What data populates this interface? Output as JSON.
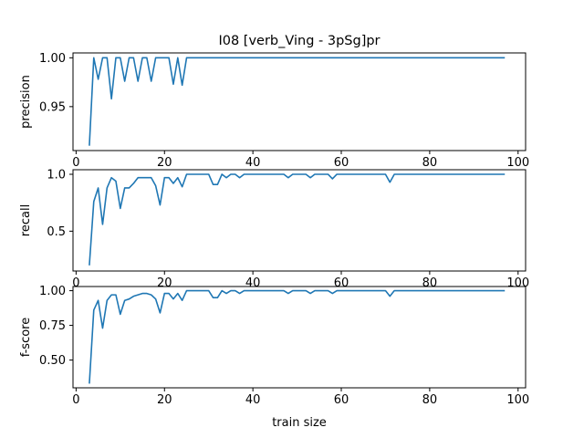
{
  "chart_data": [
    {
      "type": "line",
      "title": "I08 [verb_Ving - 3pSg]pr",
      "ylabel": "precision",
      "xlabel": "",
      "xlim": [
        -0.7,
        101.7
      ],
      "ylim": [
        0.905,
        1.005
      ],
      "xticks": [
        0,
        20,
        40,
        60,
        80,
        100
      ],
      "xtick_labels": [
        "0",
        "20",
        "40",
        "60",
        "80",
        "100"
      ],
      "yticks": [
        0.95,
        1.0
      ],
      "ytick_labels": [
        "0.95",
        "1.00"
      ],
      "grid": false,
      "series": [
        {
          "color": "#1f77b4",
          "x": [
            3,
            4,
            5,
            6,
            7,
            8,
            9,
            10,
            11,
            12,
            13,
            14,
            15,
            16,
            17,
            18,
            19,
            20,
            21,
            22,
            23,
            24,
            25,
            26,
            27,
            28,
            29,
            30,
            31,
            32,
            33,
            34,
            35,
            36,
            37,
            38,
            39,
            40,
            41,
            42,
            43,
            44,
            45,
            46,
            47,
            48,
            49,
            50,
            51,
            52,
            53,
            54,
            55,
            56,
            57,
            58,
            59,
            60,
            61,
            62,
            63,
            64,
            65,
            66,
            67,
            68,
            69,
            70,
            71,
            72,
            73,
            74,
            75,
            76,
            77,
            78,
            79,
            80,
            81,
            82,
            83,
            84,
            85,
            86,
            87,
            88,
            89,
            90,
            91,
            92,
            93,
            94,
            95,
            96,
            97
          ],
          "y": [
            0.91,
            1.0,
            0.978,
            1.0,
            1.0,
            0.958,
            1.0,
            1.0,
            0.976,
            1.0,
            1.0,
            0.976,
            1.0,
            1.0,
            0.976,
            1.0,
            1.0,
            1.0,
            1.0,
            0.973,
            1.0,
            0.972,
            1.0,
            1.0,
            1.0,
            1.0,
            1.0,
            1.0,
            1.0,
            1.0,
            1.0,
            1.0,
            1.0,
            1.0,
            1.0,
            1.0,
            1.0,
            1.0,
            1.0,
            1.0,
            1.0,
            1.0,
            1.0,
            1.0,
            1.0,
            1.0,
            1.0,
            1.0,
            1.0,
            1.0,
            1.0,
            1.0,
            1.0,
            1.0,
            1.0,
            1.0,
            1.0,
            1.0,
            1.0,
            1.0,
            1.0,
            1.0,
            1.0,
            1.0,
            1.0,
            1.0,
            1.0,
            1.0,
            1.0,
            1.0,
            1.0,
            1.0,
            1.0,
            1.0,
            1.0,
            1.0,
            1.0,
            1.0,
            1.0,
            1.0,
            1.0,
            1.0,
            1.0,
            1.0,
            1.0,
            1.0,
            1.0,
            1.0,
            1.0,
            1.0,
            1.0,
            1.0,
            1.0,
            1.0,
            1.0
          ]
        }
      ]
    },
    {
      "type": "line",
      "title": "",
      "ylabel": "recall",
      "xlabel": "",
      "xlim": [
        -0.7,
        101.7
      ],
      "ylim": [
        0.15,
        1.04
      ],
      "xticks": [
        0,
        20,
        40,
        60,
        80,
        100
      ],
      "xtick_labels": [
        "0",
        "20",
        "40",
        "60",
        "80",
        "100"
      ],
      "yticks": [
        0.5,
        1.0
      ],
      "ytick_labels": [
        "0.5",
        "1.0"
      ],
      "grid": false,
      "series": [
        {
          "color": "#1f77b4",
          "x": [
            3,
            4,
            5,
            6,
            7,
            8,
            9,
            10,
            11,
            12,
            13,
            14,
            15,
            16,
            17,
            18,
            19,
            20,
            21,
            22,
            23,
            24,
            25,
            26,
            27,
            28,
            29,
            30,
            31,
            32,
            33,
            34,
            35,
            36,
            37,
            38,
            39,
            40,
            41,
            42,
            43,
            44,
            45,
            46,
            47,
            48,
            49,
            50,
            51,
            52,
            53,
            54,
            55,
            56,
            57,
            58,
            59,
            60,
            61,
            62,
            63,
            64,
            65,
            66,
            67,
            68,
            69,
            70,
            71,
            72,
            73,
            74,
            75,
            76,
            77,
            78,
            79,
            80,
            81,
            82,
            83,
            84,
            85,
            86,
            87,
            88,
            89,
            90,
            91,
            92,
            93,
            94,
            95,
            96,
            97
          ],
          "y": [
            0.2,
            0.76,
            0.88,
            0.56,
            0.88,
            0.97,
            0.94,
            0.7,
            0.88,
            0.88,
            0.92,
            0.97,
            0.97,
            0.97,
            0.97,
            0.9,
            0.73,
            0.97,
            0.97,
            0.92,
            0.97,
            0.89,
            1.0,
            1.0,
            1.0,
            1.0,
            1.0,
            1.0,
            0.91,
            0.91,
            1.0,
            0.97,
            1.0,
            1.0,
            0.97,
            1.0,
            1.0,
            1.0,
            1.0,
            1.0,
            1.0,
            1.0,
            1.0,
            1.0,
            1.0,
            0.97,
            1.0,
            1.0,
            1.0,
            1.0,
            0.97,
            1.0,
            1.0,
            1.0,
            1.0,
            0.96,
            1.0,
            1.0,
            1.0,
            1.0,
            1.0,
            1.0,
            1.0,
            1.0,
            1.0,
            1.0,
            1.0,
            1.0,
            0.93,
            1.0,
            1.0,
            1.0,
            1.0,
            1.0,
            1.0,
            1.0,
            1.0,
            1.0,
            1.0,
            1.0,
            1.0,
            1.0,
            1.0,
            1.0,
            1.0,
            1.0,
            1.0,
            1.0,
            1.0,
            1.0,
            1.0,
            1.0,
            1.0,
            1.0,
            1.0
          ]
        }
      ]
    },
    {
      "type": "line",
      "title": "",
      "ylabel": "f-score",
      "xlabel": "train size",
      "xlim": [
        -0.7,
        101.7
      ],
      "ylim": [
        0.3,
        1.03
      ],
      "xticks": [
        0,
        20,
        40,
        60,
        80,
        100
      ],
      "xtick_labels": [
        "0",
        "20",
        "40",
        "60",
        "80",
        "100"
      ],
      "yticks": [
        0.5,
        0.75,
        1.0
      ],
      "ytick_labels": [
        "0.50",
        "0.75",
        "1.00"
      ],
      "grid": false,
      "series": [
        {
          "color": "#1f77b4",
          "x": [
            3,
            4,
            5,
            6,
            7,
            8,
            9,
            10,
            11,
            12,
            13,
            14,
            15,
            16,
            17,
            18,
            19,
            20,
            21,
            22,
            23,
            24,
            25,
            26,
            27,
            28,
            29,
            30,
            31,
            32,
            33,
            34,
            35,
            36,
            37,
            38,
            39,
            40,
            41,
            42,
            43,
            44,
            45,
            46,
            47,
            48,
            49,
            50,
            51,
            52,
            53,
            54,
            55,
            56,
            57,
            58,
            59,
            60,
            61,
            62,
            63,
            64,
            65,
            66,
            67,
            68,
            69,
            70,
            71,
            72,
            73,
            74,
            75,
            76,
            77,
            78,
            79,
            80,
            81,
            82,
            83,
            84,
            85,
            86,
            87,
            88,
            89,
            90,
            91,
            92,
            93,
            94,
            95,
            96,
            97
          ],
          "y": [
            0.33,
            0.86,
            0.93,
            0.73,
            0.93,
            0.97,
            0.97,
            0.83,
            0.93,
            0.94,
            0.96,
            0.97,
            0.98,
            0.98,
            0.97,
            0.94,
            0.84,
            0.98,
            0.98,
            0.94,
            0.98,
            0.93,
            1.0,
            1.0,
            1.0,
            1.0,
            1.0,
            1.0,
            0.95,
            0.95,
            1.0,
            0.98,
            1.0,
            1.0,
            0.98,
            1.0,
            1.0,
            1.0,
            1.0,
            1.0,
            1.0,
            1.0,
            1.0,
            1.0,
            1.0,
            0.98,
            1.0,
            1.0,
            1.0,
            1.0,
            0.98,
            1.0,
            1.0,
            1.0,
            1.0,
            0.98,
            1.0,
            1.0,
            1.0,
            1.0,
            1.0,
            1.0,
            1.0,
            1.0,
            1.0,
            1.0,
            1.0,
            1.0,
            0.96,
            1.0,
            1.0,
            1.0,
            1.0,
            1.0,
            1.0,
            1.0,
            1.0,
            1.0,
            1.0,
            1.0,
            1.0,
            1.0,
            1.0,
            1.0,
            1.0,
            1.0,
            1.0,
            1.0,
            1.0,
            1.0,
            1.0,
            1.0,
            1.0,
            1.0,
            1.0
          ]
        }
      ]
    }
  ]
}
